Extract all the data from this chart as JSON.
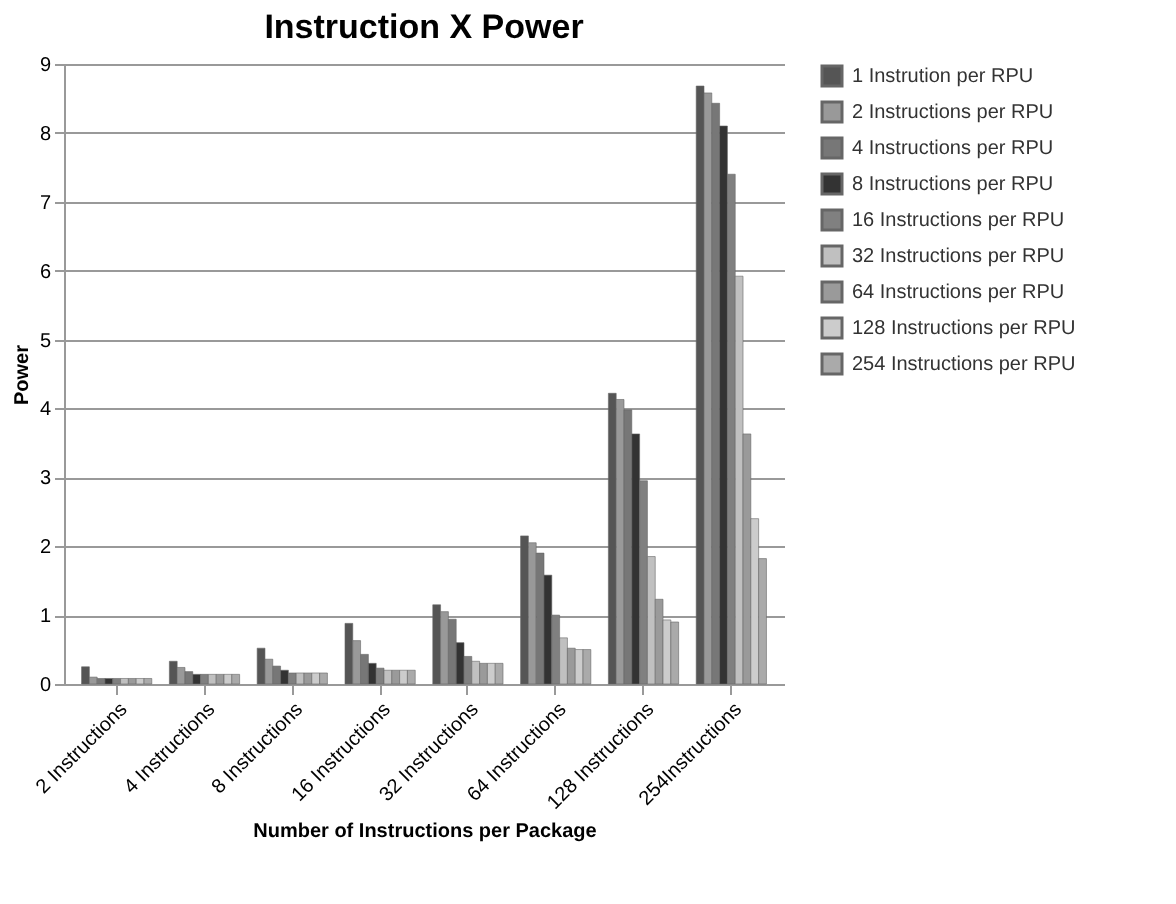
{
  "chart_data": {
    "type": "bar",
    "title": "Instruction X Power",
    "xlabel": "Number of Instructions per Package",
    "ylabel": "Power",
    "categories": [
      "2 Instructions",
      "4 Instructions",
      "8 Instructions",
      "16 Instructions",
      "32 Instructions",
      "64 Instructions",
      "128 Instructions",
      "254Instructions"
    ],
    "series": [
      {
        "name": "1  Instrution per RPU",
        "color": "#555555",
        "values": [
          0.25,
          0.33,
          0.52,
          0.88,
          1.15,
          2.15,
          4.22,
          8.68
        ]
      },
      {
        "name": "2 Instructions per RPU",
        "color": "#999999",
        "values": [
          0.1,
          0.24,
          0.36,
          0.63,
          1.05,
          2.05,
          4.13,
          8.58
        ]
      },
      {
        "name": "4 Instructions per RPU",
        "color": "#777777",
        "values": [
          0.08,
          0.18,
          0.26,
          0.43,
          0.94,
          1.9,
          3.98,
          8.43
        ]
      },
      {
        "name": "8 Instructions per RPU",
        "color": "#333333",
        "values": [
          0.08,
          0.14,
          0.2,
          0.3,
          0.6,
          1.58,
          3.63,
          8.1
        ]
      },
      {
        "name": "16 Instructions per RPU",
        "color": "#808080",
        "values": [
          0.08,
          0.14,
          0.16,
          0.23,
          0.4,
          1.0,
          2.95,
          7.4
        ]
      },
      {
        "name": "32 Instructions per RPU",
        "color": "#c0c0c0",
        "values": [
          0.08,
          0.14,
          0.16,
          0.2,
          0.33,
          0.67,
          1.85,
          5.92
        ]
      },
      {
        "name": "64 Instructions per RPU",
        "color": "#9a9a9a",
        "values": [
          0.08,
          0.14,
          0.16,
          0.2,
          0.3,
          0.52,
          1.23,
          3.63
        ]
      },
      {
        "name": "128 Instructions per RPU",
        "color": "#cccccc",
        "values": [
          0.08,
          0.14,
          0.16,
          0.2,
          0.3,
          0.5,
          0.93,
          2.4
        ]
      },
      {
        "name": "254 Instructions per RPU",
        "color": "#aaaaaa",
        "values": [
          0.08,
          0.14,
          0.16,
          0.2,
          0.3,
          0.5,
          0.9,
          1.82
        ]
      }
    ],
    "ylim": [
      0,
      9
    ],
    "yticks": [
      0,
      1,
      2,
      3,
      4,
      5,
      6,
      7,
      8,
      9
    ],
    "grid": "y",
    "legend": "right"
  }
}
